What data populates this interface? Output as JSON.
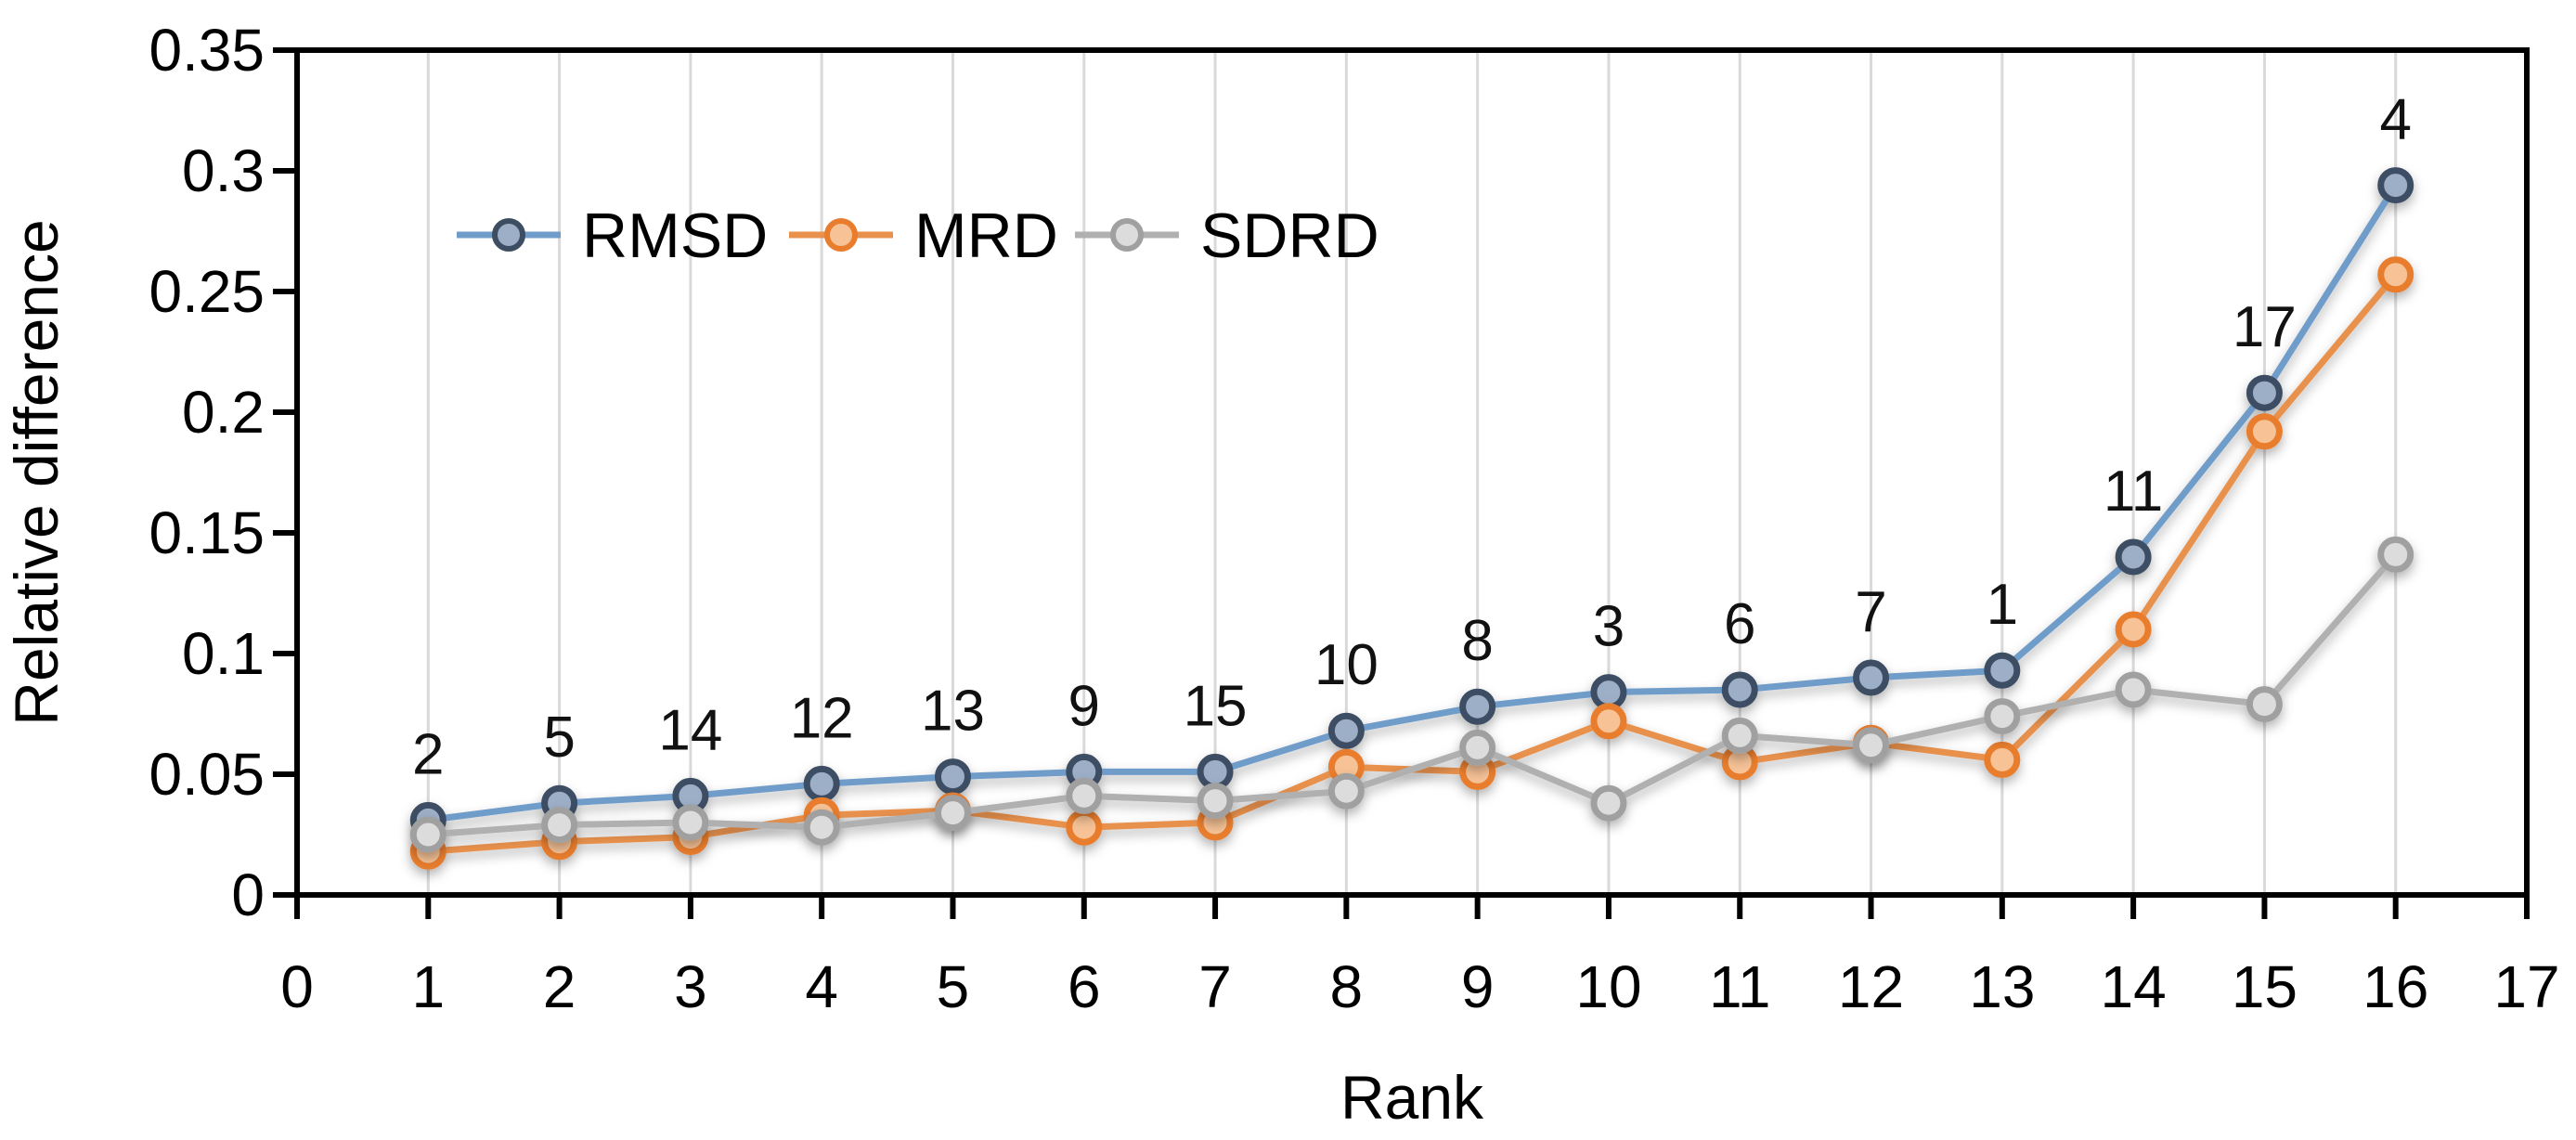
{
  "chart_data": {
    "type": "line",
    "title": "",
    "xlabel": "Rank",
    "ylabel": "Relative difference",
    "xlim": [
      0,
      17
    ],
    "ylim": [
      0,
      0.35
    ],
    "grid": "vertical-only",
    "legend_position": "top-left-inline",
    "x_ticks": [
      "0",
      "1",
      "2",
      "3",
      "4",
      "5",
      "6",
      "7",
      "8",
      "9",
      "10",
      "11",
      "12",
      "13",
      "14",
      "15",
      "16",
      "17"
    ],
    "y_ticks": [
      "0",
      "0.05",
      "0.1",
      "0.15",
      "0.2",
      "0.25",
      "0.3",
      "0.35"
    ],
    "y_tick_values": [
      0,
      0.05,
      0.1,
      0.15,
      0.2,
      0.25,
      0.3,
      0.35
    ],
    "x": [
      1,
      2,
      3,
      4,
      5,
      6,
      7,
      8,
      9,
      10,
      11,
      12,
      13,
      14,
      15,
      16
    ],
    "point_labels": [
      "2",
      "5",
      "14",
      "12",
      "13",
      "9",
      "15",
      "10",
      "8",
      "3",
      "6",
      "7",
      "1",
      "11",
      "17",
      "4"
    ],
    "series": [
      {
        "name": "RMSD",
        "line_color": "#6f9cc9",
        "marker_ring": "#3d4e63",
        "marker_fill": "#9dafc7",
        "values": [
          0.031,
          0.038,
          0.041,
          0.046,
          0.049,
          0.051,
          0.051,
          0.068,
          0.078,
          0.084,
          0.085,
          0.09,
          0.093,
          0.14,
          0.208,
          0.294
        ]
      },
      {
        "name": "MRD",
        "line_color": "#e8914d",
        "marker_ring": "#e87d2e",
        "marker_fill": "#f6c296",
        "values": [
          0.018,
          0.022,
          0.024,
          0.033,
          0.035,
          0.028,
          0.03,
          0.053,
          0.051,
          0.072,
          0.055,
          0.063,
          0.056,
          0.11,
          0.192,
          0.257
        ]
      },
      {
        "name": "SDRD",
        "line_color": "#b0b0b0",
        "marker_ring": "#a0a0a0",
        "marker_fill": "#dcdcdc",
        "values": [
          0.025,
          0.029,
          0.03,
          0.028,
          0.034,
          0.041,
          0.039,
          0.043,
          0.061,
          0.038,
          0.066,
          0.062,
          0.074,
          0.085,
          0.079,
          0.141
        ]
      }
    ],
    "colors": {
      "axis": "#000000",
      "gridline": "#d9d9d9",
      "background": "#ffffff"
    }
  }
}
